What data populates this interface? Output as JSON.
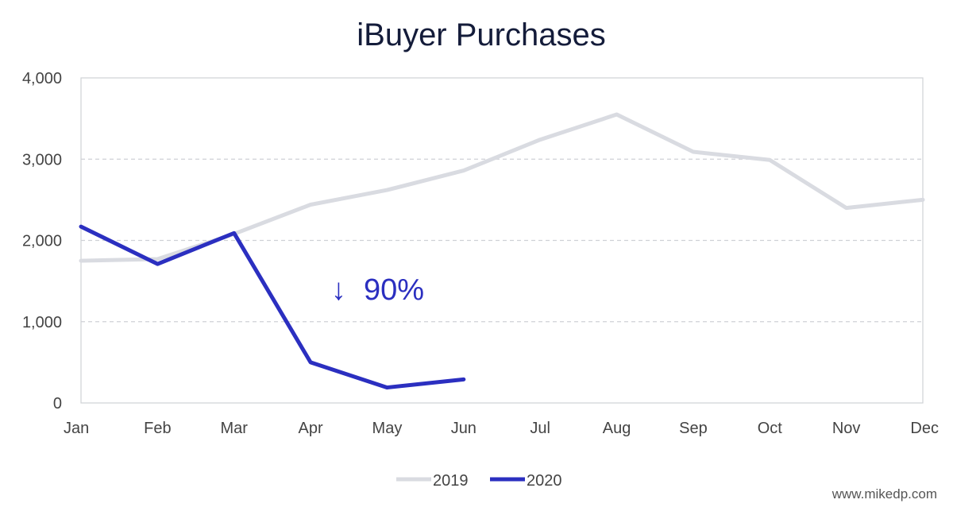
{
  "chart_data": {
    "type": "line",
    "title": "iBuyer Purchases",
    "categories": [
      "Jan",
      "Feb",
      "Mar",
      "Apr",
      "May",
      "Jun",
      "Jul",
      "Aug",
      "Sep",
      "Oct",
      "Nov",
      "Dec"
    ],
    "series": [
      {
        "name": "2019",
        "color": "#d9dbe1",
        "values": [
          1750,
          1770,
          2080,
          2440,
          2620,
          2860,
          3240,
          3550,
          3090,
          2990,
          2400,
          2500
        ]
      },
      {
        "name": "2020",
        "color": "#2b2fc0",
        "values": [
          2170,
          1710,
          2090,
          500,
          190,
          290,
          null,
          null,
          null,
          null,
          null,
          null
        ]
      }
    ],
    "ylim": [
      0,
      4000
    ],
    "yticks": [
      0,
      1000,
      2000,
      3000,
      4000
    ],
    "ytick_labels": [
      "0",
      "1,000",
      "2,000",
      "3,000",
      "4,000"
    ],
    "grid": true,
    "legend_position": "bottom-center",
    "annotation": {
      "arrow": "↓",
      "text": "90%",
      "color": "#2b2fc0"
    },
    "watermark": "www.mikedp.com"
  }
}
